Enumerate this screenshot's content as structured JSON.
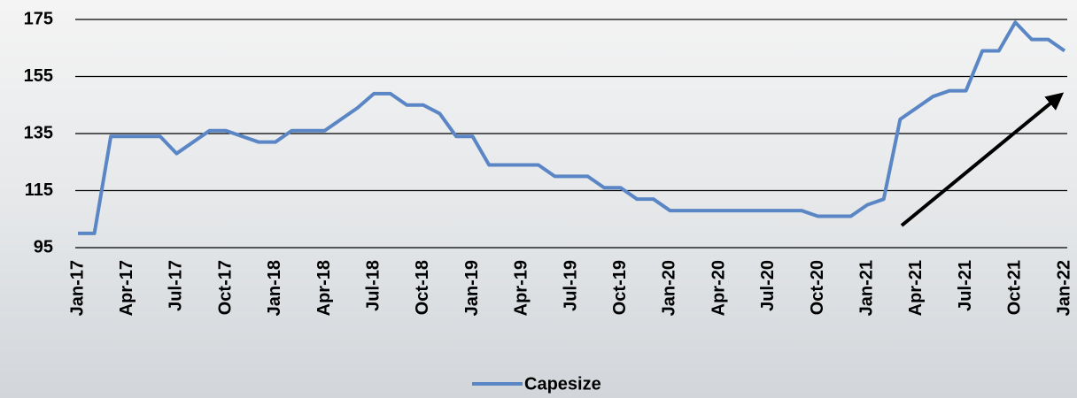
{
  "chart_data": {
    "type": "line",
    "categories": [
      "Jan-17",
      null,
      null,
      "Apr-17",
      null,
      null,
      "Jul-17",
      null,
      null,
      "Oct-17",
      null,
      null,
      "Jan-18",
      null,
      null,
      "Apr-18",
      null,
      null,
      "Jul-18",
      null,
      null,
      "Oct-18",
      null,
      null,
      "Jan-19",
      null,
      null,
      "Apr-19",
      null,
      null,
      "Jul-19",
      null,
      null,
      "Oct-19",
      null,
      null,
      "Jan-20",
      null,
      null,
      "Apr-20",
      null,
      null,
      "Jul-20",
      null,
      null,
      "Oct-20",
      null,
      null,
      "Jan-21",
      null,
      null,
      "Apr-21",
      null,
      null,
      "Jul-21",
      null,
      null,
      "Oct-21",
      null,
      null,
      "Jan-22"
    ],
    "series": [
      {
        "name": "Capesize",
        "color": "#5a86c5",
        "values": [
          100,
          100,
          134,
          134,
          134,
          134,
          128,
          132,
          136,
          136,
          134,
          132,
          132,
          136,
          136,
          136,
          140,
          144,
          149,
          149,
          145,
          145,
          142,
          134,
          134,
          124,
          124,
          124,
          124,
          120,
          120,
          120,
          116,
          116,
          112,
          112,
          108,
          108,
          108,
          108,
          108,
          108,
          108,
          108,
          108,
          106,
          106,
          106,
          110,
          112,
          140,
          144,
          148,
          150,
          150,
          164,
          164,
          174,
          168,
          168,
          164
        ]
      }
    ],
    "ylim": [
      95,
      175
    ],
    "yticks": [
      95,
      115,
      135,
      155,
      175
    ],
    "grid": true
  }
}
